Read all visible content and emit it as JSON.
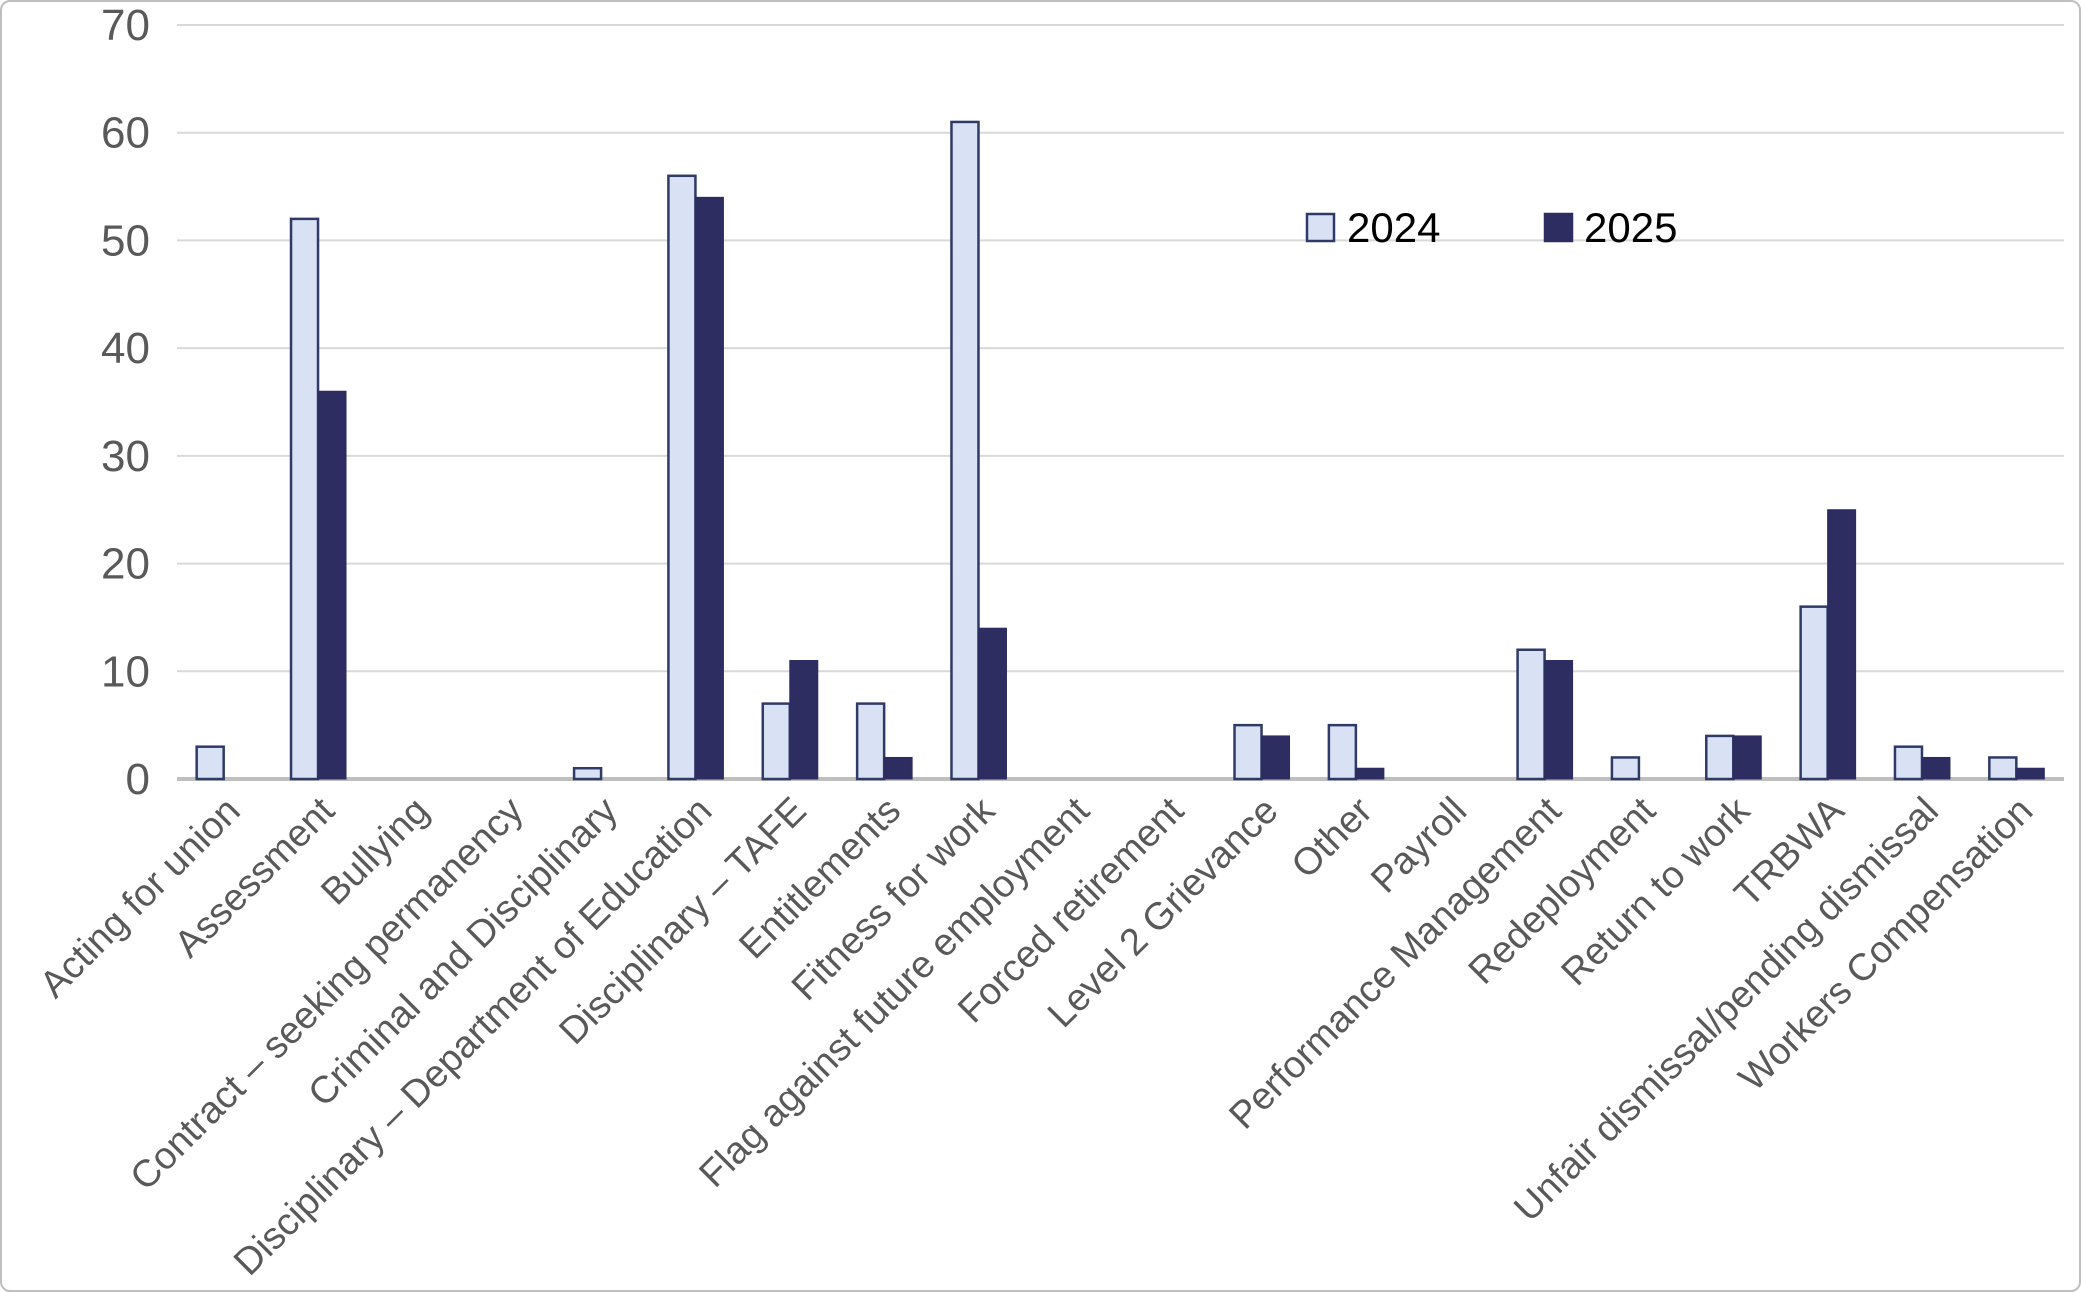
{
  "chart_data": {
    "type": "bar",
    "title": "",
    "xlabel": "",
    "ylabel": "",
    "categories": [
      "Acting for union",
      "Assessment",
      "Bullying",
      "Contract – seeking permanency",
      "Criminal and Disciplinary",
      "Disciplinary – Department of Education",
      "Disciplinary – TAFE",
      "Entitlements",
      "Fitness for work",
      "Flag against future employment",
      "Forced retirement",
      "Level 2 Grievance",
      "Other",
      "Payroll",
      "Performance Management",
      "Redeployment",
      "Return to work",
      "TRBWA",
      "Unfair dismissal/pending dismissal",
      "Workers Compensation"
    ],
    "series": [
      {
        "name": "2024",
        "values": [
          3,
          52,
          0,
          0,
          1,
          56,
          7,
          7,
          61,
          0,
          0,
          5,
          5,
          0,
          12,
          2,
          4,
          16,
          3,
          2
        ]
      },
      {
        "name": "2025",
        "values": [
          0,
          36,
          0,
          0,
          0,
          54,
          11,
          2,
          14,
          0,
          0,
          4,
          1,
          0,
          11,
          0,
          4,
          25,
          2,
          1
        ]
      }
    ],
    "ylim": [
      0,
      70
    ],
    "ytick_step": 10,
    "y_ticks": [
      "0",
      "10",
      "20",
      "30",
      "40",
      "50",
      "60",
      "70"
    ],
    "grid": "horizontal",
    "legend_position": "inside-top-right",
    "colors": {
      "series_2024_fill": "#D9E2F4",
      "series_2024_border": "#2F3A66",
      "series_2025_fill": "#2D2D62",
      "series_2025_border": "#2D2D62",
      "gridline": "#D9D9D9",
      "axis_line": "#BFBFBF",
      "tick_label": "#595959",
      "legend_text": "#000000",
      "frame_border": "#BFBFBF",
      "background": "#FFFFFF"
    }
  }
}
